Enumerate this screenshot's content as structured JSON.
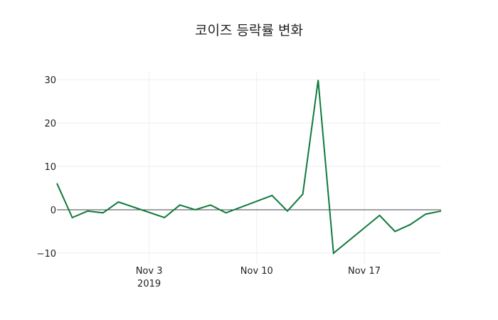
{
  "chart_data": {
    "type": "line",
    "title": "코이즈 등락률 변화",
    "xlabel": "",
    "ylabel": "",
    "ylim": [
      -10,
      32
    ],
    "grid": true,
    "legend": "none",
    "y_ticks": [
      -10,
      0,
      10,
      20,
      30
    ],
    "x_ticks": [
      {
        "date": "2019-11-03",
        "label": "Nov 3",
        "sublabel": "2019"
      },
      {
        "date": "2019-11-10",
        "label": "Nov 10",
        "sublabel": ""
      },
      {
        "date": "2019-11-17",
        "label": "Nov 17",
        "sublabel": ""
      }
    ],
    "x_range": [
      "2019-10-28",
      "2019-11-22"
    ],
    "series": [
      {
        "name": "등락률",
        "color": "#0f7a3c",
        "x": [
          "2019-10-28",
          "2019-10-29",
          "2019-10-30",
          "2019-10-31",
          "2019-11-01",
          "2019-11-04",
          "2019-11-05",
          "2019-11-06",
          "2019-11-07",
          "2019-11-08",
          "2019-11-11",
          "2019-11-12",
          "2019-11-13",
          "2019-11-14",
          "2019-11-15",
          "2019-11-18",
          "2019-11-19",
          "2019-11-20",
          "2019-11-21",
          "2019-11-22"
        ],
        "values": [
          6.1,
          -1.8,
          -0.3,
          -0.7,
          1.8,
          -1.8,
          1.1,
          0.0,
          1.1,
          -0.7,
          3.3,
          -0.3,
          3.6,
          29.9,
          -10.0,
          -1.3,
          -5.0,
          -3.4,
          -1.0,
          -0.3
        ]
      }
    ]
  }
}
